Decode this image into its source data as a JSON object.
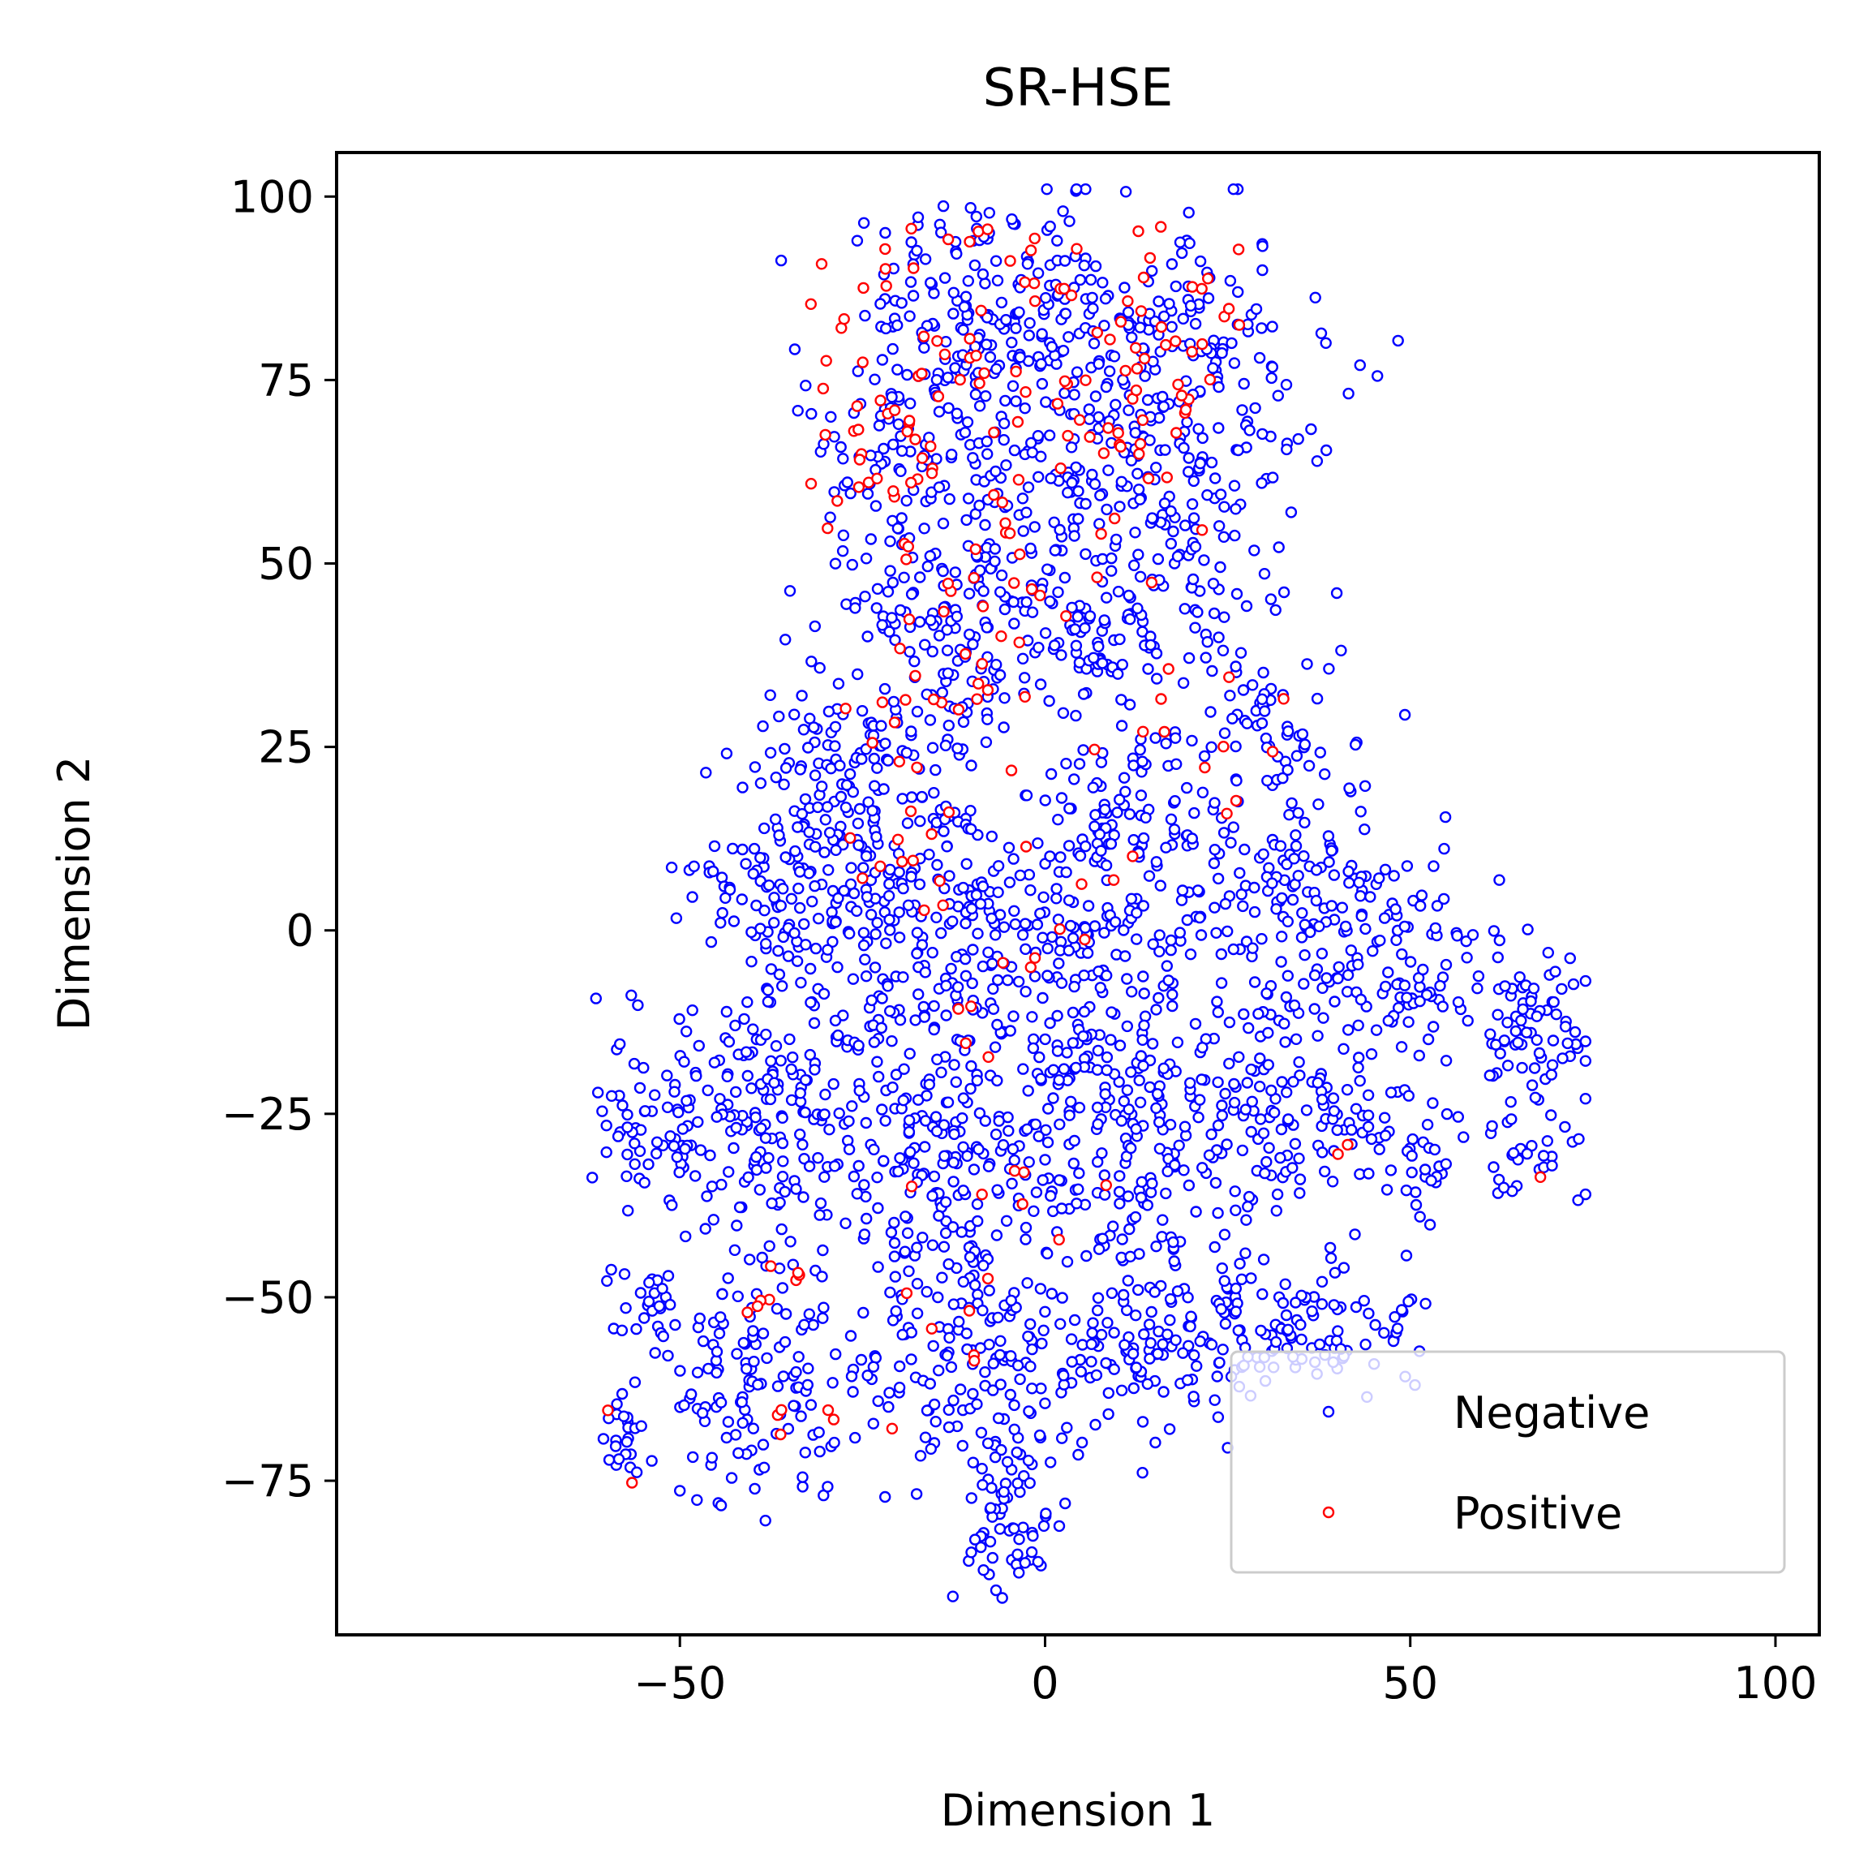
{
  "chart_data": {
    "type": "scatter",
    "title": "SR-HSE",
    "xlabel": "Dimension 1",
    "ylabel": "Dimension 2",
    "xlim": [
      -97,
      106
    ],
    "ylim": [
      -96,
      106
    ],
    "xticks": [
      -50,
      0,
      50,
      100
    ],
    "yticks": [
      -75,
      -50,
      -25,
      0,
      25,
      50,
      75,
      100
    ],
    "xtick_labels": [
      "−50",
      "0",
      "50",
      "100"
    ],
    "ytick_labels": [
      "−75",
      "−50",
      "−25",
      "0",
      "25",
      "50",
      "75",
      "100"
    ],
    "grid": false,
    "legend_position": "bottom-right",
    "marker": "open-circle",
    "series": [
      {
        "name": "Negative",
        "color": "#0000ff",
        "clusters": [
          {
            "cx": -10,
            "cy": 85,
            "sx": 10,
            "sy": 7,
            "n": 150
          },
          {
            "cx": 10,
            "cy": 80,
            "sx": 9,
            "sy": 9,
            "n": 140
          },
          {
            "cx": 25,
            "cy": 75,
            "sx": 8,
            "sy": 10,
            "n": 70
          },
          {
            "cx": -20,
            "cy": 65,
            "sx": 7,
            "sy": 9,
            "n": 90
          },
          {
            "cx": 0,
            "cy": 60,
            "sx": 10,
            "sy": 10,
            "n": 150
          },
          {
            "cx": 20,
            "cy": 55,
            "sx": 8,
            "sy": 8,
            "n": 70
          },
          {
            "cx": -10,
            "cy": 40,
            "sx": 10,
            "sy": 8,
            "n": 150
          },
          {
            "cx": 10,
            "cy": 40,
            "sx": 7,
            "sy": 6,
            "n": 60
          },
          {
            "cx": 30,
            "cy": 30,
            "sx": 6,
            "sy": 7,
            "n": 60
          },
          {
            "cx": -25,
            "cy": 20,
            "sx": 8,
            "sy": 8,
            "n": 130
          },
          {
            "cx": 15,
            "cy": 15,
            "sx": 8,
            "sy": 7,
            "n": 90
          },
          {
            "cx": -35,
            "cy": 5,
            "sx": 7,
            "sy": 8,
            "n": 110
          },
          {
            "cx": -15,
            "cy": 0,
            "sx": 10,
            "sy": 10,
            "n": 190
          },
          {
            "cx": 10,
            "cy": -5,
            "sx": 10,
            "sy": 10,
            "n": 170
          },
          {
            "cx": 35,
            "cy": 5,
            "sx": 8,
            "sy": 8,
            "n": 120
          },
          {
            "cx": 50,
            "cy": -5,
            "sx": 7,
            "sy": 7,
            "n": 90
          },
          {
            "cx": 67,
            "cy": -13,
            "sx": 4,
            "sy": 5,
            "n": 70
          },
          {
            "cx": -40,
            "cy": -25,
            "sx": 8,
            "sy": 9,
            "n": 170
          },
          {
            "cx": -15,
            "cy": -30,
            "sx": 9,
            "sy": 10,
            "n": 200
          },
          {
            "cx": 10,
            "cy": -30,
            "sx": 9,
            "sy": 9,
            "n": 170
          },
          {
            "cx": 35,
            "cy": -25,
            "sx": 8,
            "sy": 7,
            "n": 130
          },
          {
            "cx": 52,
            "cy": -32,
            "sx": 4,
            "sy": 4,
            "n": 30
          },
          {
            "cx": 67,
            "cy": -30,
            "sx": 4,
            "sy": 4,
            "n": 30
          },
          {
            "cx": -57,
            "cy": -27,
            "sx": 3,
            "sy": 4,
            "n": 30
          },
          {
            "cx": -55,
            "cy": -50,
            "sx": 3,
            "sy": 2,
            "n": 20
          },
          {
            "cx": -38,
            "cy": -60,
            "sx": 8,
            "sy": 9,
            "n": 150
          },
          {
            "cx": -10,
            "cy": -60,
            "sx": 8,
            "sy": 9,
            "n": 160
          },
          {
            "cx": 15,
            "cy": -55,
            "sx": 9,
            "sy": 7,
            "n": 140
          },
          {
            "cx": 38,
            "cy": -55,
            "sx": 8,
            "sy": 4,
            "n": 90
          },
          {
            "cx": -5,
            "cy": -82,
            "sx": 3,
            "sy": 6,
            "n": 50
          },
          {
            "cx": -58,
            "cy": -70,
            "sx": 1.5,
            "sy": 3,
            "n": 20
          }
        ]
      },
      {
        "name": "Positive",
        "color": "#ff0000",
        "clusters": [
          {
            "cx": -15,
            "cy": 85,
            "sx": 8,
            "sy": 8,
            "n": 30
          },
          {
            "cx": 15,
            "cy": 82,
            "sx": 9,
            "sy": 8,
            "n": 35
          },
          {
            "cx": 0,
            "cy": 68,
            "sx": 10,
            "sy": 8,
            "n": 40
          },
          {
            "cx": -22,
            "cy": 65,
            "sx": 6,
            "sy": 8,
            "n": 25
          },
          {
            "cx": -10,
            "cy": 45,
            "sx": 8,
            "sy": 7,
            "n": 25
          },
          {
            "cx": -15,
            "cy": 28,
            "sx": 7,
            "sy": 6,
            "n": 15
          },
          {
            "cx": 20,
            "cy": 30,
            "sx": 8,
            "sy": 10,
            "n": 12
          },
          {
            "cx": -20,
            "cy": 10,
            "sx": 5,
            "sy": 5,
            "n": 10
          },
          {
            "cx": 10,
            "cy": 5,
            "sx": 10,
            "sy": 8,
            "n": 8
          },
          {
            "cx": -10,
            "cy": -10,
            "sx": 10,
            "sy": 5,
            "n": 7
          },
          {
            "cx": 0,
            "cy": -35,
            "sx": 15,
            "sy": 8,
            "n": 8
          },
          {
            "cx": -38,
            "cy": -50,
            "sx": 3,
            "sy": 3,
            "n": 8
          },
          {
            "cx": -15,
            "cy": -55,
            "sx": 5,
            "sy": 6,
            "n": 6
          },
          {
            "cx": -35,
            "cy": -68,
            "sx": 5,
            "sy": 5,
            "n": 5
          },
          {
            "cx": -58,
            "cy": -70,
            "sx": 1,
            "sy": 5,
            "n": 2
          },
          {
            "cx": 40,
            "cy": -30,
            "sx": 2,
            "sy": 2,
            "n": 2
          },
          {
            "cx": 67,
            "cy": -33,
            "sx": 1,
            "sy": 1,
            "n": 1
          }
        ]
      }
    ]
  }
}
